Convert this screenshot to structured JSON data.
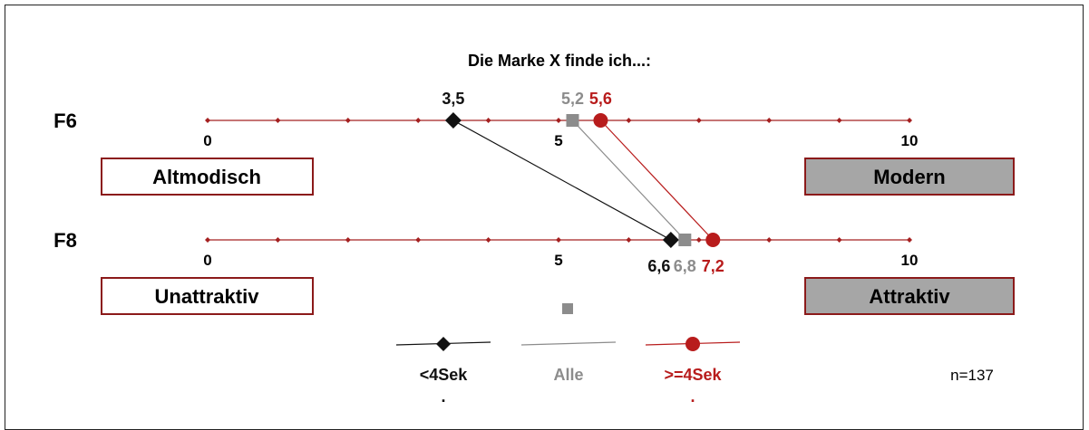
{
  "chart_data": {
    "type": "scatter",
    "title": "Die Marke X finde ich...:",
    "x_range": [
      0,
      10
    ],
    "ticks": [
      0,
      1,
      2,
      3,
      4,
      5,
      6,
      7,
      8,
      9,
      10
    ],
    "tick_labels": [
      "0",
      "5",
      "10"
    ],
    "rows": [
      {
        "label": "F6",
        "left_pole": "Altmodisch",
        "right_pole": "Modern"
      },
      {
        "label": "F8",
        "left_pole": "Unattraktiv",
        "right_pole": "Attraktiv"
      }
    ],
    "series": [
      {
        "name": "<4Sek",
        "name_suffix": ".",
        "marker": "diamond",
        "color": "#111111",
        "values": [
          3.5,
          6.6
        ],
        "value_labels": [
          "3,5",
          "6,6"
        ]
      },
      {
        "name": "Alle",
        "marker": "square",
        "color": "#8c8c8c",
        "values": [
          5.2,
          6.8
        ],
        "value_labels": [
          "5,2",
          "6,8"
        ]
      },
      {
        "name": ">=4Sek",
        "name_suffix": ".",
        "marker": "circle",
        "color": "#b81c1c",
        "values": [
          5.6,
          7.2
        ],
        "value_labels": [
          "5,6",
          "7,2"
        ]
      }
    ],
    "note": "n=137",
    "colors": {
      "axis": "#a52020",
      "pole_border": "#8b1a1a",
      "pole_fill_right": "#a6a6a6"
    }
  }
}
